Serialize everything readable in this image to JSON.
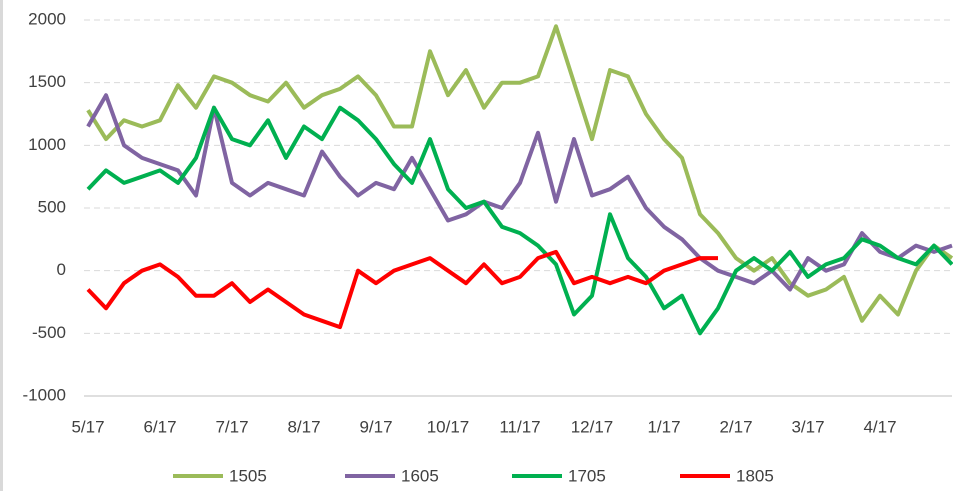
{
  "chart_data": {
    "type": "line",
    "categories": [
      "5/17",
      null,
      null,
      null,
      "6/17",
      null,
      null,
      null,
      "7/17",
      null,
      null,
      null,
      "8/17",
      null,
      null,
      null,
      "9/17",
      null,
      null,
      null,
      "10/17",
      null,
      null,
      null,
      "11/17",
      null,
      null,
      null,
      "12/17",
      null,
      null,
      null,
      "1/17",
      null,
      null,
      null,
      "2/17",
      null,
      null,
      null,
      "3/17",
      null,
      null,
      null,
      "4/17",
      null,
      null,
      null,
      null
    ],
    "ylim": [
      -1000,
      2000
    ],
    "yticks": [
      -1000,
      -500,
      0,
      500,
      1000,
      1500,
      2000
    ],
    "grid": true,
    "legend": "bottom",
    "series": [
      {
        "name": "1505",
        "color": "#9bbb59",
        "values": [
          1280,
          1050,
          1200,
          1150,
          1200,
          1480,
          1300,
          1550,
          1500,
          1400,
          1350,
          1500,
          1300,
          1400,
          1450,
          1550,
          1400,
          1150,
          1150,
          1750,
          1400,
          1600,
          1300,
          1500,
          1500,
          1550,
          1950,
          1500,
          1050,
          1600,
          1550,
          1250,
          1050,
          900,
          450,
          300,
          100,
          0,
          100,
          -100,
          -200,
          -150,
          -50,
          -400,
          -200,
          -350,
          0,
          200,
          100
        ]
      },
      {
        "name": "1605",
        "color": "#8064a2",
        "values": [
          1150,
          1400,
          1000,
          900,
          850,
          800,
          600,
          1300,
          700,
          600,
          700,
          650,
          600,
          950,
          750,
          600,
          700,
          650,
          900,
          650,
          400,
          450,
          550,
          500,
          700,
          1100,
          550,
          1050,
          600,
          650,
          750,
          500,
          350,
          250,
          100,
          0,
          -50,
          -100,
          0,
          -150,
          100,
          0,
          50,
          300,
          150,
          100,
          200,
          150,
          200
        ]
      },
      {
        "name": "1705",
        "color": "#00b050",
        "values": [
          650,
          800,
          700,
          750,
          800,
          700,
          900,
          1300,
          1050,
          1000,
          1200,
          900,
          1150,
          1050,
          1300,
          1200,
          1050,
          850,
          700,
          1050,
          650,
          500,
          550,
          350,
          300,
          200,
          50,
          -350,
          -200,
          450,
          100,
          -50,
          -300,
          -200,
          -500,
          -300,
          0,
          100,
          0,
          150,
          -50,
          50,
          100,
          250,
          200,
          100,
          50,
          200,
          50
        ]
      },
      {
        "name": "1805",
        "color": "#ff0000",
        "values": [
          -150,
          -300,
          -100,
          0,
          50,
          -50,
          -200,
          -200,
          -100,
          -250,
          -150,
          -250,
          -350,
          -400,
          -450,
          0,
          -100,
          0,
          50,
          100,
          0,
          -100,
          50,
          -100,
          -50,
          100,
          150,
          -100,
          -50,
          -100,
          -50,
          -100,
          0,
          50,
          100,
          100,
          null,
          null,
          null,
          null,
          null,
          null,
          null,
          null,
          null,
          null,
          null,
          null,
          null
        ]
      }
    ]
  }
}
